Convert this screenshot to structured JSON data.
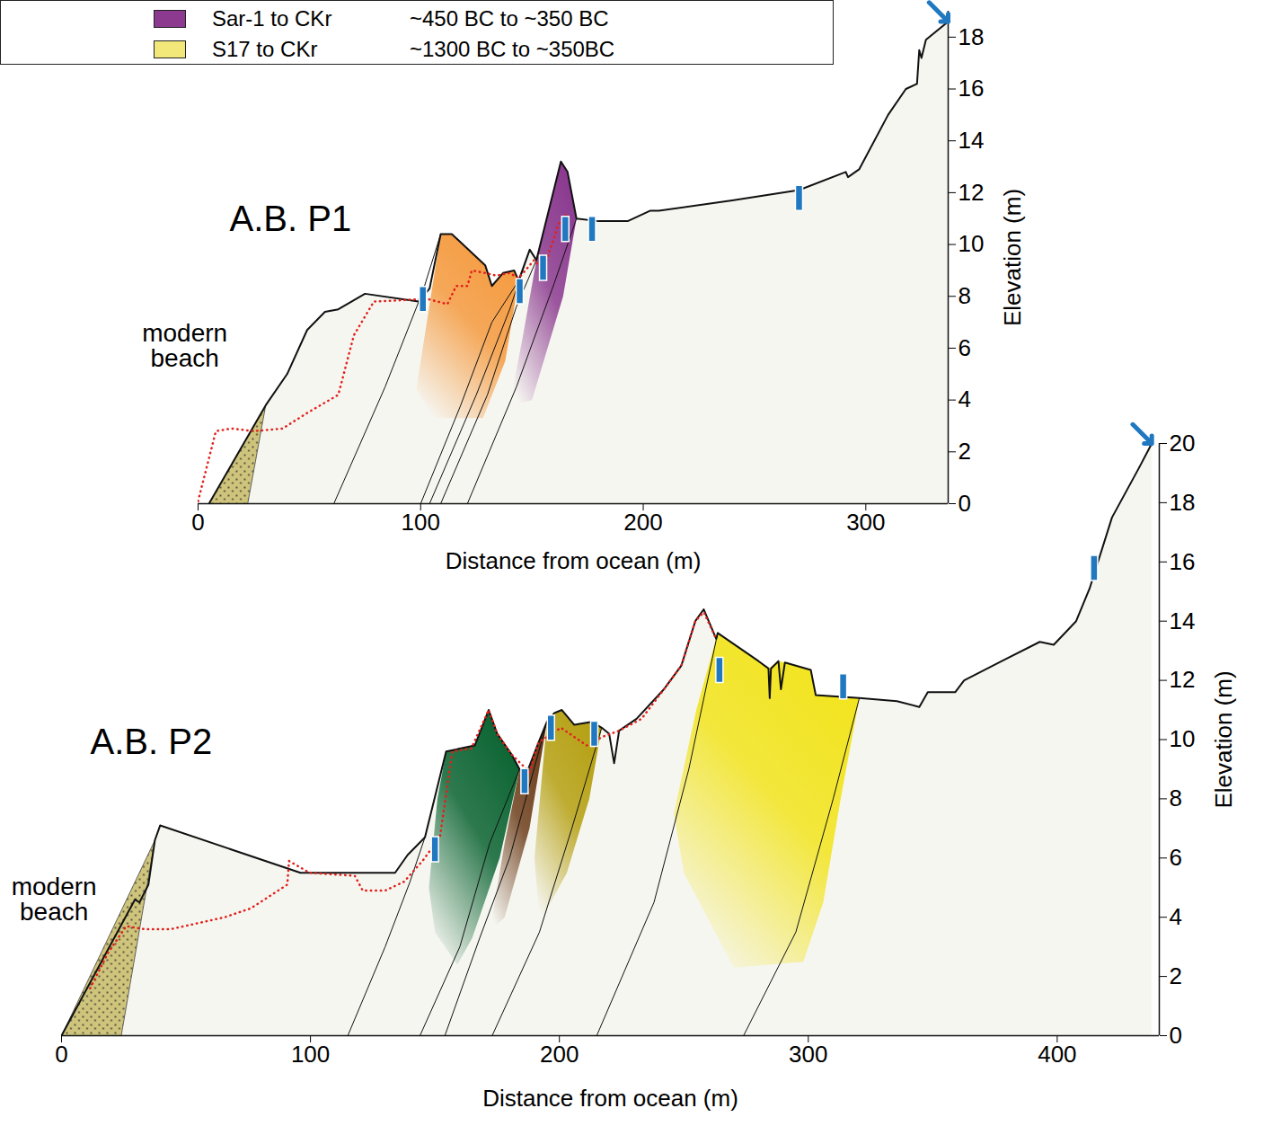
{
  "legend_items": [
    {
      "name": "Sar-1 to CKr",
      "label": "~450 BC to ~350 BC",
      "color": "#8b3a8f"
    },
    {
      "name": "S17 to CKr",
      "label": "~1300 BC to ~350BC",
      "color": "#f2e87a"
    }
  ],
  "chart_data": [
    {
      "type": "cross_section",
      "title": "A.B. P1",
      "xlabel": "Distance from ocean (m)",
      "ylabel": "Elevation (m)",
      "xlim": [
        0,
        337
      ],
      "ylim": [
        0,
        19
      ],
      "xticks": [
        0,
        100,
        200,
        300
      ],
      "yticks": [
        0,
        2,
        4,
        6,
        8,
        10,
        12,
        14,
        16,
        18
      ],
      "ground": {
        "color": "#f6f6f1"
      },
      "surface": {
        "x": [
          4.9,
          30.4,
          40,
          49,
          57,
          63,
          75,
          99,
          104,
          109,
          114,
          129,
          132,
          137,
          142,
          144,
          149,
          152,
          163,
          166,
          170,
          180,
          193,
          203,
          207,
          240,
          270,
          291,
          292,
          297,
          310,
          318,
          323,
          324,
          325,
          327,
          337
        ],
        "y": [
          0,
          3.8,
          5.0,
          6.7,
          7.4,
          7.5,
          8.1,
          7.8,
          8.3,
          10.4,
          10.4,
          9.2,
          8.4,
          8.9,
          9.0,
          8.6,
          9.8,
          9.4,
          13.2,
          12.8,
          11.0,
          10.9,
          10.9,
          11.3,
          11.3,
          11.7,
          12.1,
          12.8,
          12.6,
          12.9,
          15.0,
          16.0,
          16.2,
          17.5,
          17.2,
          17.9,
          18.6
        ]
      },
      "units": [
        {
          "color": "#f59a3e",
          "x": [
            109,
            114,
            129,
            132,
            137,
            142,
            144,
            138,
            128,
            106,
            98
          ],
          "y": [
            10.4,
            10.4,
            9.2,
            8.4,
            8.9,
            9.0,
            8.6,
            5.5,
            3.3,
            3.3,
            4.4
          ]
        },
        {
          "color": "#8b3a8f",
          "x": [
            152,
            163,
            166,
            170,
            164,
            150,
            140,
            146
          ],
          "y": [
            9.4,
            13.2,
            12.8,
            11.0,
            8.0,
            4.0,
            3.8,
            6.5
          ]
        }
      ],
      "contacts": [
        {
          "x": [
            61,
            84,
            101,
            109
          ],
          "y": [
            0,
            4.5,
            8.2,
            10.4
          ]
        },
        {
          "x": [
            100,
            118,
            132,
            144
          ],
          "y": [
            0,
            3.8,
            7.0,
            8.6
          ]
        },
        {
          "x": [
            104,
            125,
            140,
            149
          ],
          "y": [
            0,
            4.2,
            7.5,
            9.8
          ]
        },
        {
          "x": [
            109,
            130,
            143,
            152
          ],
          "y": [
            0,
            4.2,
            7.6,
            9.4
          ]
        },
        {
          "x": [
            121,
            143,
            160,
            170
          ],
          "y": [
            0,
            4.5,
            8.5,
            11.0
          ]
        }
      ],
      "beach": {
        "color": "#cfc47c",
        "x": [
          4.9,
          30.4,
          22.3
        ],
        "y": [
          0,
          3.8,
          0
        ]
      },
      "red_line": {
        "color": "#e3201b",
        "line_style": "dotted",
        "x": [
          0,
          8,
          15,
          25,
          38,
          49,
          63,
          70,
          79,
          103,
          112,
          116,
          121,
          123,
          129,
          134,
          140,
          144,
          151,
          155,
          162,
          166
        ],
        "y": [
          0.1,
          2.8,
          2.9,
          2.8,
          2.9,
          3.5,
          4.2,
          6.5,
          7.8,
          7.9,
          7.7,
          8.4,
          8.4,
          9.0,
          8.9,
          8.8,
          8.9,
          8.7,
          9.4,
          9.0,
          10.8,
          11.2
        ]
      },
      "samples": {
        "color": "#1f78c0",
        "x": [
          101,
          144.5,
          155,
          165,
          177,
          270
        ],
        "y": [
          7.9,
          8.2,
          9.1,
          10.6,
          10.6,
          11.8
        ]
      },
      "arrow": {
        "color": "#1f78c0"
      },
      "annotations": [
        {
          "text": "modern\nbeach",
          "x": -6,
          "y": 6.1
        }
      ]
    },
    {
      "type": "cross_section",
      "title": "A.B. P2",
      "xlabel": "Distance from ocean (m)",
      "ylabel": "Elevation (m)",
      "xlim": [
        0,
        441
      ],
      "ylim": [
        0,
        20
      ],
      "xticks": [
        0,
        100,
        200,
        300,
        400
      ],
      "yticks": [
        0,
        2,
        4,
        6,
        8,
        10,
        12,
        14,
        16,
        18,
        20
      ],
      "ground": {
        "color": "#f6f6f1"
      },
      "surface": {
        "x": [
          0,
          29.5,
          31.3,
          34.9,
          37.5,
          39.6,
          96,
          134,
          139,
          146,
          154.5,
          166,
          171.6,
          175,
          180.8,
          184,
          187,
          191.6,
          195,
          198,
          201,
          206,
          213,
          217,
          220,
          222,
          224,
          231,
          242,
          249,
          254.6,
          258,
          263,
          263.6,
          280,
          284,
          284.5,
          285,
          288,
          289,
          290.6,
          301,
          303,
          320.5,
          335.6,
          344.6,
          348,
          359,
          362.6,
          378.8,
          393,
          398.6,
          407.6,
          413,
          422,
          433,
          438
        ],
        "y": [
          0,
          4.6,
          4.5,
          5.1,
          6.6,
          7.1,
          5.5,
          5.5,
          6.1,
          6.7,
          9.6,
          9.8,
          11.0,
          10.2,
          9.5,
          9.0,
          8.9,
          9.9,
          10.6,
          10.9,
          11.0,
          10.5,
          10.6,
          10.4,
          10.2,
          9.2,
          10.3,
          10.7,
          11.7,
          12.5,
          14.0,
          14.4,
          13.4,
          13.6,
          12.65,
          12.4,
          11.4,
          12.4,
          12.65,
          11.7,
          12.6,
          12.35,
          11.5,
          11.4,
          11.3,
          11.1,
          11.6,
          11.6,
          12.0,
          12.7,
          13.3,
          13.2,
          14.0,
          15.1,
          17.5,
          19.2,
          20.0
        ]
      },
      "units": [
        {
          "color": "#0a6331",
          "x": [
            154.5,
            166,
            171.6,
            175,
            180.8,
            184,
            176,
            165,
            159,
            150,
            147.6,
            151
          ],
          "y": [
            9.6,
            9.8,
            11.0,
            10.2,
            9.5,
            9.0,
            6.0,
            3.3,
            2.4,
            3.5,
            5.0,
            8.0
          ]
        },
        {
          "color": "#6e3f1c",
          "x": [
            184,
            187,
            191.6,
            195,
            188,
            178,
            172,
            178
          ],
          "y": [
            9.0,
            8.9,
            9.9,
            10.6,
            7.0,
            4.0,
            3.5,
            6.5
          ]
        },
        {
          "color": "#b5a012",
          "x": [
            195,
            198,
            201,
            206,
            213,
            217,
            212,
            203,
            192,
            190
          ],
          "y": [
            10.6,
            10.9,
            11.0,
            10.5,
            10.6,
            10.4,
            8.0,
            5.5,
            3.8,
            6.0
          ]
        },
        {
          "color": "#f2e41c",
          "x": [
            263.6,
            280,
            284,
            288,
            290.6,
            301,
            303,
            320.5,
            313,
            306,
            298,
            270,
            250,
            246,
            255
          ],
          "y": [
            13.6,
            12.65,
            12.4,
            12.65,
            12.6,
            12.35,
            11.5,
            11.4,
            8.0,
            4.5,
            2.5,
            2.3,
            5.5,
            7.5,
            11.0
          ]
        }
      ],
      "contacts": [
        {
          "x": [
            115,
            130,
            140,
            146
          ],
          "y": [
            0,
            3.0,
            5.2,
            6.7
          ]
        },
        {
          "x": [
            144,
            160,
            172,
            184
          ],
          "y": [
            0,
            3.0,
            6.5,
            9.0
          ]
        },
        {
          "x": [
            154,
            168,
            180,
            195
          ],
          "y": [
            0,
            3.3,
            6.0,
            10.6
          ]
        },
        {
          "x": [
            173,
            192,
            205,
            217
          ],
          "y": [
            0,
            3.5,
            7.0,
            10.4
          ]
        },
        {
          "x": [
            215,
            238,
            252,
            263.6
          ],
          "y": [
            0,
            4.5,
            9.0,
            13.6
          ]
        },
        {
          "x": [
            274,
            295,
            310,
            320.5
          ],
          "y": [
            0,
            3.5,
            8.0,
            11.4
          ]
        }
      ],
      "beach": {
        "color": "#cfc47c",
        "x": [
          0,
          37.5,
          24
        ],
        "y": [
          0,
          6.6,
          0
        ]
      },
      "red_line": {
        "color": "#e3201b",
        "line_style": "dotted",
        "x": [
          11.5,
          18.7,
          26,
          33,
          44,
          65.5,
          76,
          90.7,
          91.4,
          99.7,
          117.8,
          121,
          130,
          137.6,
          145,
          152,
          157,
          164.6,
          171.6,
          175,
          180.8,
          188,
          191.6,
          200.6,
          211,
          217.5,
          224,
          233,
          242,
          249,
          254.6,
          258,
          263
        ],
        "y": [
          1.6,
          2.8,
          3.7,
          3.6,
          3.6,
          4.0,
          4.3,
          5.1,
          5.9,
          5.5,
          5.4,
          4.9,
          4.9,
          5.2,
          5.9,
          6.7,
          9.6,
          9.7,
          11.0,
          10.2,
          9.5,
          8.9,
          9.9,
          10.4,
          9.8,
          10.1,
          10.3,
          10.7,
          11.7,
          12.5,
          14.0,
          14.3,
          13.4
        ]
      },
      "samples": {
        "color": "#1f78c0",
        "x": [
          150,
          186,
          196.6,
          214,
          264.3,
          314,
          414.8
        ],
        "y": [
          6.3,
          8.6,
          10.4,
          10.2,
          12.35,
          11.8,
          15.8
        ]
      },
      "arrow": {
        "color": "#1f78c0"
      },
      "annotations": [
        {
          "text": "modern\nbeach",
          "x": -3,
          "y": 4.6
        }
      ]
    }
  ]
}
